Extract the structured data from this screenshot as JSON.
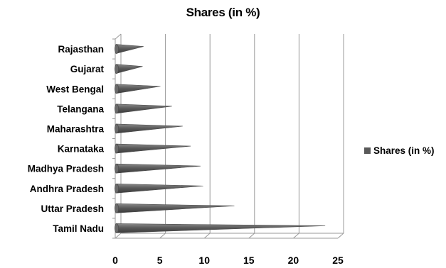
{
  "chart_data": {
    "type": "bar",
    "orientation": "horizontal",
    "bar_shape": "cone",
    "title": "Shares (in %)",
    "categories": [
      "Rajasthan",
      "Gujarat",
      "West Bengal",
      "Telangana",
      "Maharashtra",
      "Karnataka",
      "Madhya Pradesh",
      "Andhra Pradesh",
      "Uttar Pradesh",
      "Tamil Nadu"
    ],
    "series": [
      {
        "name": "Shares (in %)",
        "values": [
          2.6,
          2.5,
          4.5,
          5.8,
          7.0,
          7.9,
          9.0,
          9.3,
          12.8,
          23.0
        ],
        "color": "#595959"
      }
    ],
    "xlim": [
      0,
      25
    ],
    "xticks": [
      0,
      5,
      10,
      15,
      20,
      25
    ],
    "grid": "vertical",
    "legend_position": "right"
  }
}
